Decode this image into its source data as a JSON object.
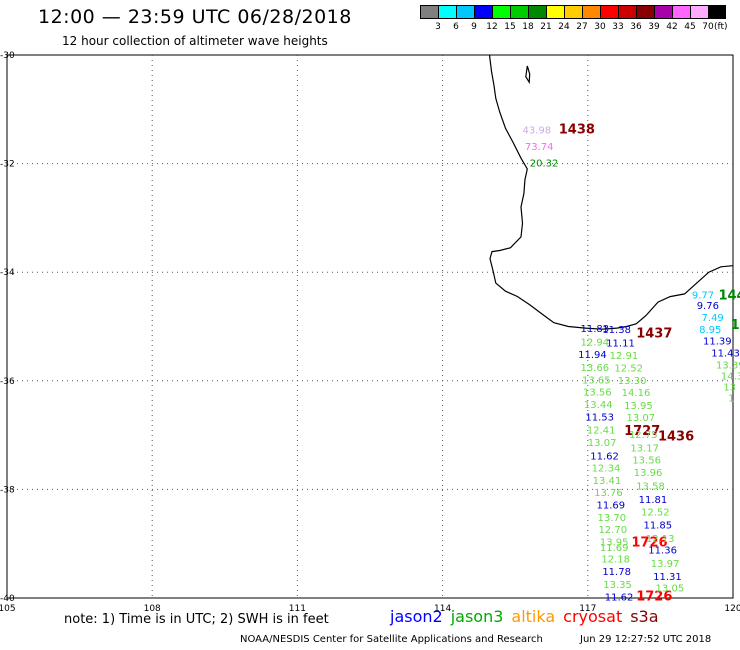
{
  "header": {
    "title": "12:00 — 23:59 UTC 06/28/2018",
    "subtitle": "12 hour collection of altimeter wave heights"
  },
  "legend": {
    "colors": [
      "#808080",
      "#00ffff",
      "#00c8ff",
      "#0000ff",
      "#00ff00",
      "#00cd00",
      "#008800",
      "#ffff00",
      "#ffcc00",
      "#ff8800",
      "#ff0000",
      "#cc0000",
      "#880000",
      "#aa00aa",
      "#ff66ff",
      "#ffaaff",
      "#000000"
    ],
    "ticks": [
      "3",
      "6",
      "9",
      "12",
      "15",
      "18",
      "21",
      "24",
      "27",
      "30",
      "33",
      "36",
      "39",
      "42",
      "45",
      "70"
    ],
    "unit": "(ft)"
  },
  "map": {
    "lon_min": 105,
    "lon_max": 120,
    "lat_min": -40,
    "lat_max": -30,
    "lon_ticks": [
      105,
      108,
      111,
      114,
      117,
      120
    ],
    "lon_labels": [
      "105",
      "108",
      "111",
      "114",
      "117",
      "120"
    ],
    "lat_ticks": [
      -30,
      -32,
      -34,
      -36,
      -38,
      -40
    ],
    "lat_labels": [
      "-30",
      "-32",
      "-34",
      "-36",
      "-38",
      "-40"
    ],
    "coast": [
      [
        114.97,
        -30.0
      ],
      [
        115.01,
        -30.3
      ],
      [
        115.06,
        -30.55
      ],
      [
        115.1,
        -30.8
      ],
      [
        115.18,
        -31.05
      ],
      [
        115.3,
        -31.35
      ],
      [
        115.45,
        -31.6
      ],
      [
        115.62,
        -31.9
      ],
      [
        115.75,
        -32.1
      ],
      [
        115.7,
        -32.3
      ],
      [
        115.68,
        -32.55
      ],
      [
        115.62,
        -32.8
      ],
      [
        115.65,
        -33.1
      ],
      [
        115.62,
        -33.35
      ],
      [
        115.4,
        -33.55
      ],
      [
        115.18,
        -33.6
      ],
      [
        115.02,
        -33.62
      ],
      [
        114.98,
        -33.75
      ],
      [
        115.05,
        -34.0
      ],
      [
        115.1,
        -34.2
      ],
      [
        115.3,
        -34.35
      ],
      [
        115.55,
        -34.45
      ],
      [
        115.8,
        -34.6
      ],
      [
        116.1,
        -34.8
      ],
      [
        116.3,
        -34.93
      ],
      [
        116.6,
        -35.0
      ],
      [
        116.95,
        -35.03
      ],
      [
        117.3,
        -35.05
      ],
      [
        117.6,
        -35.03
      ],
      [
        117.8,
        -35.0
      ],
      [
        118.0,
        -34.95
      ],
      [
        118.2,
        -34.8
      ],
      [
        118.45,
        -34.55
      ],
      [
        118.7,
        -34.45
      ],
      [
        119.0,
        -34.4
      ],
      [
        119.25,
        -34.2
      ],
      [
        119.5,
        -34.0
      ],
      [
        119.75,
        -33.9
      ],
      [
        120.0,
        -33.88
      ]
    ],
    "islands": [
      [
        [
          115.75,
          -30.2
        ],
        [
          115.8,
          -30.35
        ],
        [
          115.79,
          -30.5
        ],
        [
          115.72,
          -30.4
        ],
        [
          115.75,
          -30.2
        ]
      ]
    ],
    "labels": [
      {
        "text": "43.98",
        "lon": 115.65,
        "lat": -31.45,
        "color": "#ccaaee"
      },
      {
        "text": "1438",
        "lon": 116.4,
        "lat": -31.45,
        "color": "#880000",
        "bold": true
      },
      {
        "text": "73.74",
        "lon": 115.7,
        "lat": -31.75,
        "color": "#ff66ff"
      },
      {
        "text": "20.32",
        "lon": 115.8,
        "lat": -32.05,
        "color": "#008800"
      },
      {
        "text": "1437",
        "lon": 118.0,
        "lat": -35.2,
        "color": "#880000",
        "bold": true
      },
      {
        "text": "1727",
        "lon": 117.75,
        "lat": -37.0,
        "color": "#880000",
        "bold": true
      },
      {
        "text": "1436",
        "lon": 118.45,
        "lat": -37.1,
        "color": "#880000",
        "bold": true
      },
      {
        "text": "1726",
        "lon": 117.9,
        "lat": -39.05,
        "color": "#ff0000",
        "bold": true
      },
      {
        "text": "1726",
        "lon": 118.0,
        "lat": -40.05,
        "color": "#ff0000",
        "bold": true
      },
      {
        "text": "144",
        "lon": 119.7,
        "lat": -34.5,
        "color": "#008800",
        "bold": true
      },
      {
        "text": "1",
        "lon": 119.95,
        "lat": -35.05,
        "color": "#008800",
        "bold": true
      },
      {
        "text": "11.83",
        "lon": 116.85,
        "lat": -35.1,
        "color": "#0000cc"
      },
      {
        "text": "11.38",
        "lon": 117.3,
        "lat": -35.12,
        "color": "#0000cc"
      },
      {
        "text": "12.94",
        "lon": 116.85,
        "lat": -35.35,
        "color": "#66dd44"
      },
      {
        "text": "11.11",
        "lon": 117.38,
        "lat": -35.37,
        "color": "#0000cc"
      },
      {
        "text": "11.94",
        "lon": 116.8,
        "lat": -35.58,
        "color": "#0000cc"
      },
      {
        "text": "12.91",
        "lon": 117.45,
        "lat": -35.6,
        "color": "#66dd44"
      },
      {
        "text": "13.66",
        "lon": 116.85,
        "lat": -35.82,
        "color": "#66dd44"
      },
      {
        "text": "12.52",
        "lon": 117.55,
        "lat": -35.83,
        "color": "#66dd44"
      },
      {
        "text": "13.65",
        "lon": 116.88,
        "lat": -36.05,
        "color": "#66dd44"
      },
      {
        "text": "13.30",
        "lon": 117.62,
        "lat": -36.06,
        "color": "#66dd44"
      },
      {
        "text": "13.56",
        "lon": 116.9,
        "lat": -36.27,
        "color": "#66dd44"
      },
      {
        "text": "14.16",
        "lon": 117.7,
        "lat": -36.28,
        "color": "#66dd44"
      },
      {
        "text": "13.44",
        "lon": 116.92,
        "lat": -36.5,
        "color": "#66dd44"
      },
      {
        "text": "13.95",
        "lon": 117.75,
        "lat": -36.52,
        "color": "#66dd44"
      },
      {
        "text": "11.53",
        "lon": 116.95,
        "lat": -36.73,
        "color": "#0000cc"
      },
      {
        "text": "13.07",
        "lon": 117.8,
        "lat": -36.74,
        "color": "#66dd44"
      },
      {
        "text": "12.41",
        "lon": 116.98,
        "lat": -36.97,
        "color": "#66dd44"
      },
      {
        "text": "12.75",
        "lon": 117.85,
        "lat": -37.05,
        "color": "#66dd44"
      },
      {
        "text": "13.07",
        "lon": 117.0,
        "lat": -37.2,
        "color": "#66dd44"
      },
      {
        "text": "13.17",
        "lon": 117.88,
        "lat": -37.3,
        "color": "#66dd44"
      },
      {
        "text": "11.62",
        "lon": 117.05,
        "lat": -37.45,
        "color": "#0000cc"
      },
      {
        "text": "13.56",
        "lon": 117.92,
        "lat": -37.52,
        "color": "#66dd44"
      },
      {
        "text": "12.34",
        "lon": 117.08,
        "lat": -37.67,
        "color": "#66dd44"
      },
      {
        "text": "13.96",
        "lon": 117.95,
        "lat": -37.75,
        "color": "#66dd44"
      },
      {
        "text": "13.41",
        "lon": 117.1,
        "lat": -37.9,
        "color": "#66dd44"
      },
      {
        "text": "13.58",
        "lon": 118.0,
        "lat": -38.0,
        "color": "#66dd44"
      },
      {
        "text": "13.76",
        "lon": 117.13,
        "lat": -38.12,
        "color": "#66dd44"
      },
      {
        "text": "11.81",
        "lon": 118.05,
        "lat": -38.25,
        "color": "#0000cc"
      },
      {
        "text": "11.69",
        "lon": 117.18,
        "lat": -38.35,
        "color": "#0000cc"
      },
      {
        "text": "12.52",
        "lon": 118.1,
        "lat": -38.48,
        "color": "#66dd44"
      },
      {
        "text": "13.70",
        "lon": 117.2,
        "lat": -38.58,
        "color": "#66dd44"
      },
      {
        "text": "11.85",
        "lon": 118.15,
        "lat": -38.72,
        "color": "#0000cc"
      },
      {
        "text": "12.70",
        "lon": 117.22,
        "lat": -38.8,
        "color": "#66dd44"
      },
      {
        "text": "12.13",
        "lon": 118.2,
        "lat": -38.97,
        "color": "#66dd44"
      },
      {
        "text": "13.95",
        "lon": 117.25,
        "lat": -39.03,
        "color": "#66dd44"
      },
      {
        "text": "11.36",
        "lon": 118.25,
        "lat": -39.18,
        "color": "#0000cc"
      },
      {
        "text": "11.69",
        "lon": 117.25,
        "lat": -39.13,
        "color": "#66dd44"
      },
      {
        "text": "12.18",
        "lon": 117.28,
        "lat": -39.35,
        "color": "#66dd44"
      },
      {
        "text": "13.97",
        "lon": 118.3,
        "lat": -39.43,
        "color": "#66dd44"
      },
      {
        "text": "11.78",
        "lon": 117.3,
        "lat": -39.58,
        "color": "#0000cc"
      },
      {
        "text": "11.31",
        "lon": 118.35,
        "lat": -39.67,
        "color": "#0000cc"
      },
      {
        "text": "13.35",
        "lon": 117.32,
        "lat": -39.82,
        "color": "#66dd44"
      },
      {
        "text": "13.05",
        "lon": 118.4,
        "lat": -39.88,
        "color": "#66dd44"
      },
      {
        "text": "11.62",
        "lon": 117.35,
        "lat": -40.05,
        "color": "#0000cc"
      },
      {
        "text": "9.77",
        "lon": 119.15,
        "lat": -34.48,
        "color": "#00c8ff"
      },
      {
        "text": "9.76",
        "lon": 119.25,
        "lat": -34.68,
        "color": "#0000cc"
      },
      {
        "text": "7.49",
        "lon": 119.35,
        "lat": -34.9,
        "color": "#00c8ff"
      },
      {
        "text": "8.95",
        "lon": 119.3,
        "lat": -35.12,
        "color": "#00c8ff"
      },
      {
        "text": "11.39",
        "lon": 119.38,
        "lat": -35.33,
        "color": "#0000cc"
      },
      {
        "text": "11.43",
        "lon": 119.55,
        "lat": -35.55,
        "color": "#0000cc"
      },
      {
        "text": "13.39",
        "lon": 119.65,
        "lat": -35.77,
        "color": "#66dd44"
      },
      {
        "text": "14.3",
        "lon": 119.75,
        "lat": -35.98,
        "color": "#66dd44"
      },
      {
        "text": "13",
        "lon": 119.8,
        "lat": -36.18,
        "color": "#66dd44"
      },
      {
        "text": "1",
        "lon": 119.9,
        "lat": -36.38,
        "color": "#66dd44"
      }
    ]
  },
  "footer": {
    "note": "note: 1) Time is in UTC; 2) SWH is in feet",
    "satellites": [
      {
        "name": "jason2",
        "color": "#0000ff"
      },
      {
        "name": "jason3",
        "color": "#00aa00"
      },
      {
        "name": "altika",
        "color": "#ff9900"
      },
      {
        "name": "cryosat",
        "color": "#ff0000"
      },
      {
        "name": "s3a",
        "color": "#880000"
      }
    ],
    "credit": "NOAA/NESDIS Center for Satellite Applications and Research",
    "generated": "Jun 29 12:27:52 UTC 2018"
  }
}
